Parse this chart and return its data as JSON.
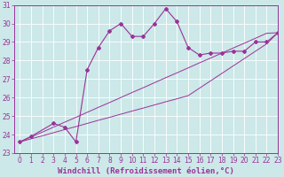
{
  "xlabel": "Windchill (Refroidissement éolien,°C)",
  "x": [
    0,
    1,
    2,
    3,
    4,
    5,
    6,
    7,
    8,
    9,
    10,
    11,
    12,
    13,
    14,
    15,
    16,
    17,
    18,
    19,
    20,
    21,
    22,
    23
  ],
  "y_main": [
    23.6,
    23.9,
    null,
    24.6,
    24.4,
    23.6,
    27.5,
    28.7,
    29.6,
    30.0,
    29.3,
    29.3,
    30.0,
    30.8,
    30.1,
    28.7,
    28.3,
    28.4,
    28.4,
    28.5,
    28.5,
    29.0,
    29.0,
    29.5
  ],
  "y_line1": [
    23.6,
    23.87,
    24.13,
    24.4,
    24.67,
    24.93,
    25.2,
    25.47,
    25.73,
    26.0,
    26.27,
    26.53,
    26.8,
    27.07,
    27.33,
    27.6,
    27.87,
    28.13,
    28.4,
    28.67,
    28.93,
    29.2,
    29.47,
    29.5
  ],
  "y_line2": [
    23.6,
    23.77,
    23.93,
    24.1,
    24.27,
    24.43,
    24.6,
    24.77,
    24.93,
    25.1,
    25.27,
    25.43,
    25.6,
    25.77,
    25.93,
    26.1,
    26.5,
    26.9,
    27.3,
    27.7,
    28.1,
    28.5,
    28.9,
    29.5
  ],
  "ylim": [
    23,
    31
  ],
  "xlim": [
    -0.5,
    23
  ],
  "color": "#993399",
  "bg_color": "#cce8e8",
  "grid_color": "#ffffff",
  "tick_fontsize": 5.5,
  "label_fontsize": 6.5
}
